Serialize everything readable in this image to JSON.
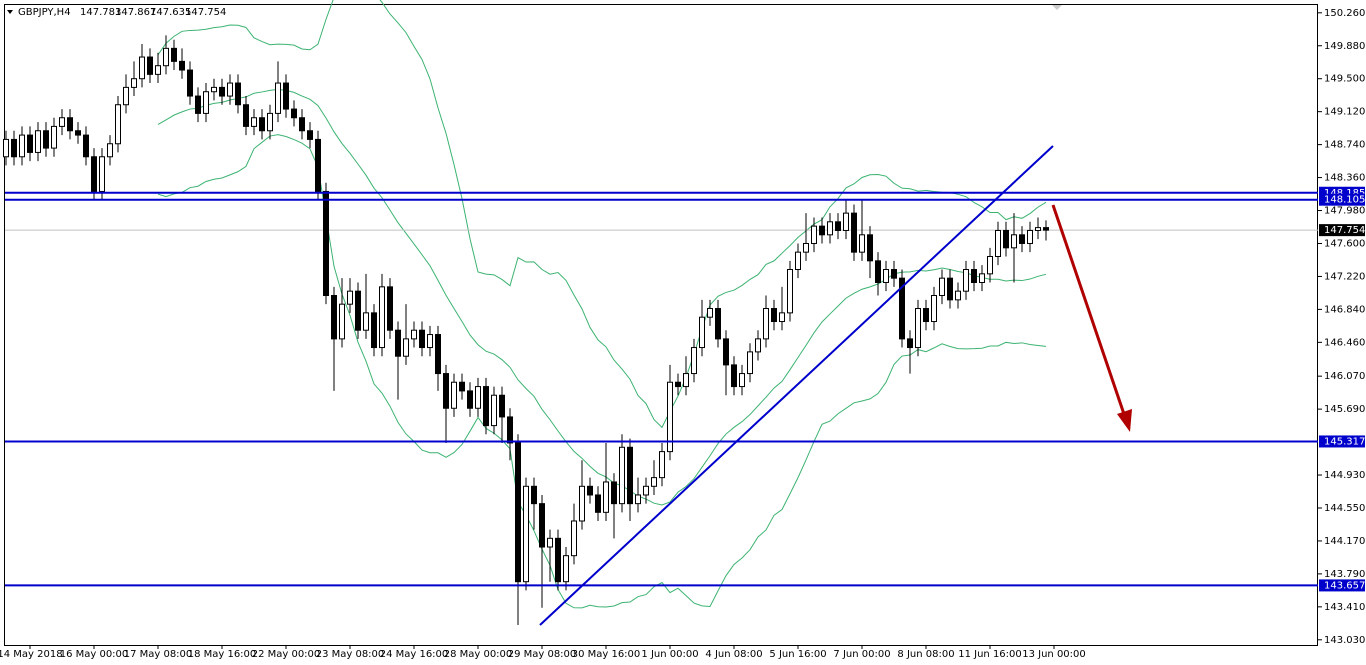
{
  "chart_data": {
    "type": "candlestick",
    "symbol": "GBPJPY,H4",
    "open": [
      148.6,
      148.8,
      148.6,
      148.85,
      148.65,
      148.9,
      148.7,
      148.95,
      149.05,
      148.9,
      148.85,
      148.6,
      148.2,
      148.6,
      148.75,
      149.2,
      149.4,
      149.5,
      149.75,
      149.55,
      149.65,
      149.85,
      149.7,
      149.6,
      149.3,
      149.1,
      149.35,
      149.4,
      149.3,
      149.45,
      149.2,
      148.95,
      149.05,
      148.9,
      149.1,
      149.45,
      149.15,
      149.05,
      148.9,
      148.8,
      148.2,
      147.0,
      146.5,
      146.9,
      147.05,
      146.6,
      146.8,
      146.4,
      147.1,
      146.6,
      146.3,
      146.5,
      146.6,
      146.4,
      146.55,
      146.1,
      145.7,
      146.0,
      145.9,
      145.7,
      145.95,
      145.5,
      145.85,
      145.6,
      145.3,
      143.7,
      144.8,
      144.6,
      144.1,
      144.2,
      143.7,
      144.0,
      144.4,
      144.8,
      144.7,
      144.5,
      144.85,
      144.6,
      145.25,
      144.6,
      144.7,
      144.8,
      144.9,
      145.2,
      146.0,
      145.95,
      146.1,
      146.4,
      146.75,
      146.85,
      146.5,
      146.2,
      145.95,
      146.1,
      146.35,
      146.5,
      146.85,
      146.7,
      146.8,
      147.3,
      147.5,
      147.6,
      147.8,
      147.7,
      147.85,
      147.75,
      147.95,
      147.5,
      147.7,
      147.4,
      147.15,
      147.3,
      147.2,
      146.5,
      146.4,
      146.85,
      146.7,
      147.0,
      147.2,
      146.95,
      147.05,
      147.3,
      147.15,
      147.25,
      147.45,
      147.75,
      147.55,
      147.7,
      147.6,
      147.75,
      147.783
    ],
    "high": [
      148.9,
      148.9,
      148.95,
      148.95,
      149.0,
      149.0,
      149.05,
      149.15,
      149.15,
      149.0,
      148.95,
      148.7,
      148.7,
      148.85,
      149.3,
      149.55,
      149.7,
      149.9,
      149.85,
      149.8,
      150.0,
      149.95,
      149.85,
      149.7,
      149.4,
      149.45,
      149.5,
      149.5,
      149.55,
      149.55,
      149.3,
      149.15,
      149.15,
      149.2,
      149.7,
      149.55,
      149.25,
      149.15,
      149.0,
      148.9,
      148.3,
      147.1,
      147.2,
      147.2,
      147.15,
      147.25,
      146.9,
      147.25,
      147.2,
      146.7,
      146.9,
      146.7,
      146.7,
      146.65,
      146.65,
      146.2,
      146.1,
      146.1,
      146.0,
      146.05,
      146.05,
      145.95,
      145.95,
      145.7,
      145.4,
      144.9,
      144.9,
      144.7,
      144.3,
      144.3,
      144.1,
      144.6,
      145.1,
      144.9,
      144.8,
      145.3,
      144.95,
      145.4,
      145.35,
      144.9,
      144.9,
      145.1,
      145.3,
      146.2,
      146.1,
      146.3,
      146.5,
      146.95,
      146.95,
      146.95,
      146.6,
      146.3,
      146.2,
      146.45,
      146.6,
      147.0,
      146.95,
      147.1,
      147.4,
      147.6,
      147.95,
      147.9,
      147.9,
      147.95,
      147.95,
      148.1,
      148.05,
      148.1,
      147.8,
      147.5,
      147.4,
      147.4,
      147.3,
      146.6,
      146.95,
      146.95,
      147.1,
      147.3,
      147.3,
      147.15,
      147.4,
      147.4,
      147.35,
      147.55,
      147.85,
      147.85,
      147.95,
      147.8,
      147.85,
      147.9,
      147.867
    ],
    "low": [
      148.5,
      148.5,
      148.5,
      148.55,
      148.55,
      148.6,
      148.6,
      148.85,
      148.8,
      148.75,
      148.5,
      148.1,
      148.1,
      148.5,
      148.65,
      149.1,
      149.3,
      149.4,
      149.45,
      149.45,
      149.55,
      149.6,
      149.5,
      149.2,
      149.0,
      149.0,
      149.25,
      149.2,
      149.2,
      149.1,
      148.85,
      148.85,
      148.8,
      148.8,
      149.0,
      149.05,
      148.95,
      148.8,
      148.7,
      148.1,
      146.9,
      145.9,
      146.4,
      146.8,
      146.5,
      146.5,
      146.3,
      146.3,
      146.5,
      145.8,
      146.2,
      146.4,
      146.3,
      146.3,
      145.9,
      145.3,
      145.6,
      145.8,
      145.6,
      145.6,
      145.4,
      145.4,
      145.3,
      145.1,
      143.2,
      143.6,
      144.3,
      143.4,
      143.7,
      143.6,
      143.6,
      143.9,
      144.3,
      144.6,
      144.4,
      144.4,
      144.2,
      144.5,
      144.4,
      144.5,
      144.6,
      144.7,
      144.8,
      145.1,
      145.85,
      145.85,
      146.0,
      146.3,
      146.65,
      146.4,
      145.85,
      145.85,
      145.85,
      146.0,
      146.25,
      146.4,
      146.6,
      146.6,
      146.7,
      147.2,
      147.4,
      147.5,
      147.6,
      147.6,
      147.65,
      147.65,
      147.4,
      147.4,
      147.2,
      147.0,
      147.05,
      147.1,
      146.4,
      146.1,
      146.3,
      146.6,
      146.6,
      146.9,
      146.85,
      146.85,
      146.95,
      147.05,
      147.05,
      147.15,
      147.35,
      147.45,
      147.15,
      147.5,
      147.5,
      147.65,
      147.635
    ],
    "close": [
      148.8,
      148.6,
      148.85,
      148.65,
      148.9,
      148.7,
      148.95,
      149.05,
      148.9,
      148.85,
      148.6,
      148.2,
      148.6,
      148.75,
      149.2,
      149.4,
      149.5,
      149.75,
      149.55,
      149.65,
      149.85,
      149.7,
      149.6,
      149.3,
      149.1,
      149.35,
      149.4,
      149.3,
      149.45,
      149.2,
      148.95,
      149.05,
      148.9,
      149.1,
      149.45,
      149.15,
      149.05,
      148.9,
      148.8,
      148.2,
      147.0,
      146.5,
      146.9,
      147.05,
      146.6,
      146.8,
      146.4,
      147.1,
      146.6,
      146.3,
      146.5,
      146.6,
      146.4,
      146.55,
      146.1,
      145.7,
      146.0,
      145.9,
      145.7,
      145.95,
      145.5,
      145.85,
      145.6,
      145.3,
      143.7,
      144.8,
      144.6,
      144.1,
      144.2,
      143.7,
      144.0,
      144.4,
      144.8,
      144.7,
      144.5,
      144.85,
      144.6,
      145.25,
      144.6,
      144.7,
      144.8,
      144.9,
      145.2,
      146.0,
      145.95,
      146.1,
      146.4,
      146.75,
      146.85,
      146.5,
      146.2,
      145.95,
      146.1,
      146.35,
      146.5,
      146.85,
      146.7,
      146.8,
      147.3,
      147.5,
      147.6,
      147.8,
      147.7,
      147.85,
      147.75,
      147.95,
      147.5,
      147.7,
      147.4,
      147.15,
      147.3,
      147.2,
      146.5,
      146.4,
      146.85,
      146.7,
      147.0,
      147.2,
      146.95,
      147.05,
      147.3,
      147.15,
      147.25,
      147.45,
      147.75,
      147.55,
      147.7,
      147.6,
      147.75,
      147.783,
      147.754
    ],
    "levels": [
      148.185,
      148.105,
      145.317,
      143.657
    ],
    "xlim": [
      -0.125,
      164
    ],
    "ylim": [
      142.97,
      150.35
    ],
    "xticks": [
      {
        "value": 3,
        "label": "14 May 2018"
      },
      {
        "value": 11,
        "label": "16 May 00:00"
      },
      {
        "value": 19,
        "label": "17 May 08:00"
      },
      {
        "value": 27,
        "label": "18 May 16:00"
      },
      {
        "value": 35,
        "label": "22 May 00:00"
      },
      {
        "value": 43,
        "label": "23 May 08:00"
      },
      {
        "value": 51,
        "label": "24 May 16:00"
      },
      {
        "value": 59,
        "label": "28 May 00:00"
      },
      {
        "value": 67,
        "label": "29 May 08:00"
      },
      {
        "value": 75,
        "label": "30 May 16:00"
      },
      {
        "value": 83,
        "label": "1 Jun 00:00"
      },
      {
        "value": 91,
        "label": "4 Jun 08:00"
      },
      {
        "value": 99,
        "label": "5 Jun 16:00"
      },
      {
        "value": 107,
        "label": "7 Jun 00:00"
      },
      {
        "value": 115,
        "label": "8 Jun 08:00"
      },
      {
        "value": 123,
        "label": "11 Jun 16:00"
      },
      {
        "value": 131,
        "label": "13 Jun 00:00"
      }
    ],
    "yticks": [
      {
        "value": 150.26,
        "label": "150.260"
      },
      {
        "value": 149.88,
        "label": "149.880"
      },
      {
        "value": 149.5,
        "label": "149.500"
      },
      {
        "value": 149.12,
        "label": "149.120"
      },
      {
        "value": 148.74,
        "label": "148.740"
      },
      {
        "value": 148.36,
        "label": "148.360"
      },
      {
        "value": 147.98,
        "label": "147.980"
      },
      {
        "value": 147.6,
        "label": "147.600"
      },
      {
        "value": 147.22,
        "label": "147.220"
      },
      {
        "value": 146.84,
        "label": "146.840"
      },
      {
        "value": 146.46,
        "label": "146.460"
      },
      {
        "value": 146.07,
        "label": "146.070"
      },
      {
        "value": 145.69,
        "label": "145.690"
      },
      {
        "value": 144.93,
        "label": "144.930"
      },
      {
        "value": 144.55,
        "label": "144.550"
      },
      {
        "value": 144.17,
        "label": "144.170"
      },
      {
        "value": 143.79,
        "label": "143.790"
      },
      {
        "value": 143.41,
        "label": "143.410"
      },
      {
        "value": 143.03,
        "label": "143.030"
      }
    ],
    "level_color": "#0000cc",
    "band_color": "#3cb371",
    "arrow_color": "#b00000"
  }
}
